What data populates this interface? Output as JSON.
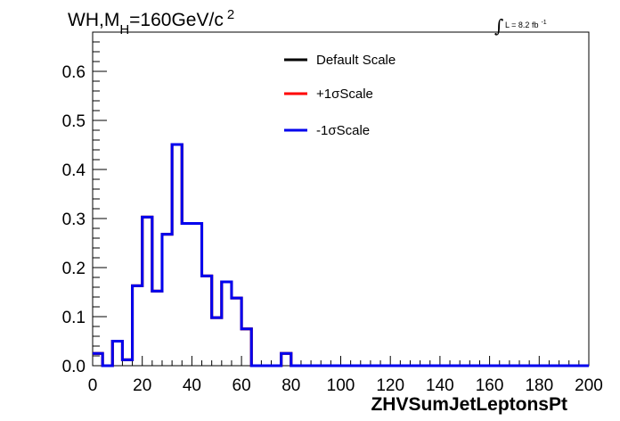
{
  "title": {
    "main": "WH,M",
    "sub": "H",
    "rest": "=160GeV/c",
    "sup": "2"
  },
  "lumi": {
    "symbol": "∫",
    "text": "L = 8.2 fb",
    "sup": "-1"
  },
  "chart_data": {
    "type": "line",
    "xlabel": "ZHVSumJetLeptonsPt",
    "ylabel": "",
    "xlim": [
      0,
      200
    ],
    "ylim": [
      0,
      0.68
    ],
    "x_ticks": [
      0,
      20,
      40,
      60,
      80,
      100,
      120,
      140,
      160,
      180,
      200
    ],
    "y_ticks": [
      0.0,
      0.1,
      0.2,
      0.3,
      0.4,
      0.5,
      0.6
    ],
    "y_tick_labels": [
      "0.0",
      "0.1",
      "0.2",
      "0.3",
      "0.4",
      "0.5",
      "0.6"
    ],
    "grid": false,
    "legend_position": "top-right",
    "bin_edges": [
      0,
      4,
      8,
      12,
      16,
      20,
      24,
      28,
      32,
      36,
      40,
      44,
      48,
      52,
      56,
      60,
      64,
      68,
      72,
      76,
      80,
      84,
      88,
      92,
      96,
      100,
      104,
      108,
      112,
      116,
      120,
      124,
      128,
      132,
      136,
      140,
      144,
      148,
      152,
      156,
      160,
      164,
      168,
      172,
      176,
      180,
      184,
      188,
      192,
      196,
      200
    ],
    "series": [
      {
        "name": "Default Scale",
        "color": "#000000",
        "values": [
          0.025,
          0.0,
          0.05,
          0.012,
          0.163,
          0.303,
          0.152,
          0.268,
          0.451,
          0.29,
          0.29,
          0.183,
          0.098,
          0.171,
          0.138,
          0.075,
          0.0,
          0.0,
          0.0,
          0.025,
          0.0,
          0.0,
          0.0,
          0.0,
          0.0,
          0.0,
          0.0,
          0.0,
          0.0,
          0.0,
          0.0,
          0.0,
          0.0,
          0.0,
          0.0,
          0.0,
          0.0,
          0.0,
          0.0,
          0.0,
          0.0,
          0.0,
          0.0,
          0.0,
          0.0,
          0.0,
          0.0,
          0.0,
          0.0,
          0.0
        ]
      },
      {
        "name": "+1σScale",
        "color": "#ff0000",
        "values": [
          0.025,
          0.0,
          0.05,
          0.012,
          0.163,
          0.303,
          0.152,
          0.268,
          0.451,
          0.29,
          0.29,
          0.183,
          0.098,
          0.171,
          0.138,
          0.075,
          0.0,
          0.0,
          0.0,
          0.025,
          0.0,
          0.0,
          0.0,
          0.0,
          0.0,
          0.0,
          0.0,
          0.0,
          0.0,
          0.0,
          0.0,
          0.0,
          0.0,
          0.0,
          0.0,
          0.0,
          0.0,
          0.0,
          0.0,
          0.0,
          0.0,
          0.0,
          0.0,
          0.0,
          0.0,
          0.0,
          0.0,
          0.0,
          0.0,
          0.0
        ]
      },
      {
        "name": "-1σScale",
        "color": "#0000ee",
        "values": [
          0.025,
          0.0,
          0.05,
          0.012,
          0.163,
          0.303,
          0.152,
          0.268,
          0.451,
          0.29,
          0.29,
          0.183,
          0.098,
          0.171,
          0.138,
          0.075,
          0.0,
          0.0,
          0.0,
          0.025,
          0.0,
          0.0,
          0.0,
          0.0,
          0.0,
          0.0,
          0.0,
          0.0,
          0.0,
          0.0,
          0.0,
          0.0,
          0.0,
          0.0,
          0.0,
          0.0,
          0.0,
          0.0,
          0.0,
          0.0,
          0.0,
          0.0,
          0.0,
          0.0,
          0.0,
          0.0,
          0.0,
          0.0,
          0.0,
          0.0
        ]
      }
    ]
  }
}
